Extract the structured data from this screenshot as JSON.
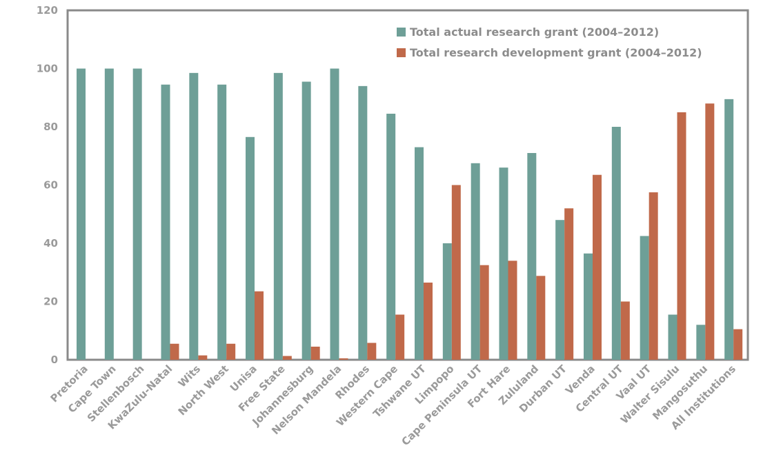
{
  "chart_data": {
    "type": "bar",
    "categories": [
      "Pretoria",
      "Cape Town",
      "Stellenbosch",
      "KwaZulu-Natal",
      "Wits",
      "North West",
      "Unisa",
      "Free State",
      "Johannesburg",
      "Nelson Mandela",
      "Rhodes",
      "Western Cape",
      "Tshwane UT",
      "Limpopo",
      "Cape Peninsula UT",
      "Fort Hare",
      "Zululand",
      "Durban UT",
      "Venda",
      "Central UT",
      "Vaal UT",
      "Walter Sisulu",
      "Mangosuthu",
      "All Institutions"
    ],
    "series": [
      {
        "name": "Total actual research grant (2004–2012)",
        "color": "#6e9f97",
        "values": [
          100,
          100,
          100,
          94.5,
          98.5,
          94.5,
          76.5,
          98.5,
          95.5,
          100,
          94,
          84.5,
          73,
          40,
          67.5,
          66,
          71,
          48,
          36.5,
          80,
          42.5,
          15.5,
          12,
          89.5
        ]
      },
      {
        "name": "Total research development grant (2004–2012)",
        "color": "#c0694a",
        "values": [
          0,
          0,
          0,
          5.5,
          1.5,
          5.5,
          23.5,
          1.3,
          4.5,
          0.5,
          5.8,
          15.5,
          26.5,
          60,
          32.5,
          34,
          28.8,
          52,
          63.5,
          20,
          57.5,
          85,
          88,
          10.5
        ]
      }
    ],
    "y_ticks": [
      "0",
      "20",
      "40",
      "60",
      "80",
      "100",
      "120"
    ],
    "ylim": [
      0,
      120
    ],
    "title": "",
    "xlabel": "",
    "ylabel": "",
    "legend_position": "top-right",
    "grid": false
  }
}
